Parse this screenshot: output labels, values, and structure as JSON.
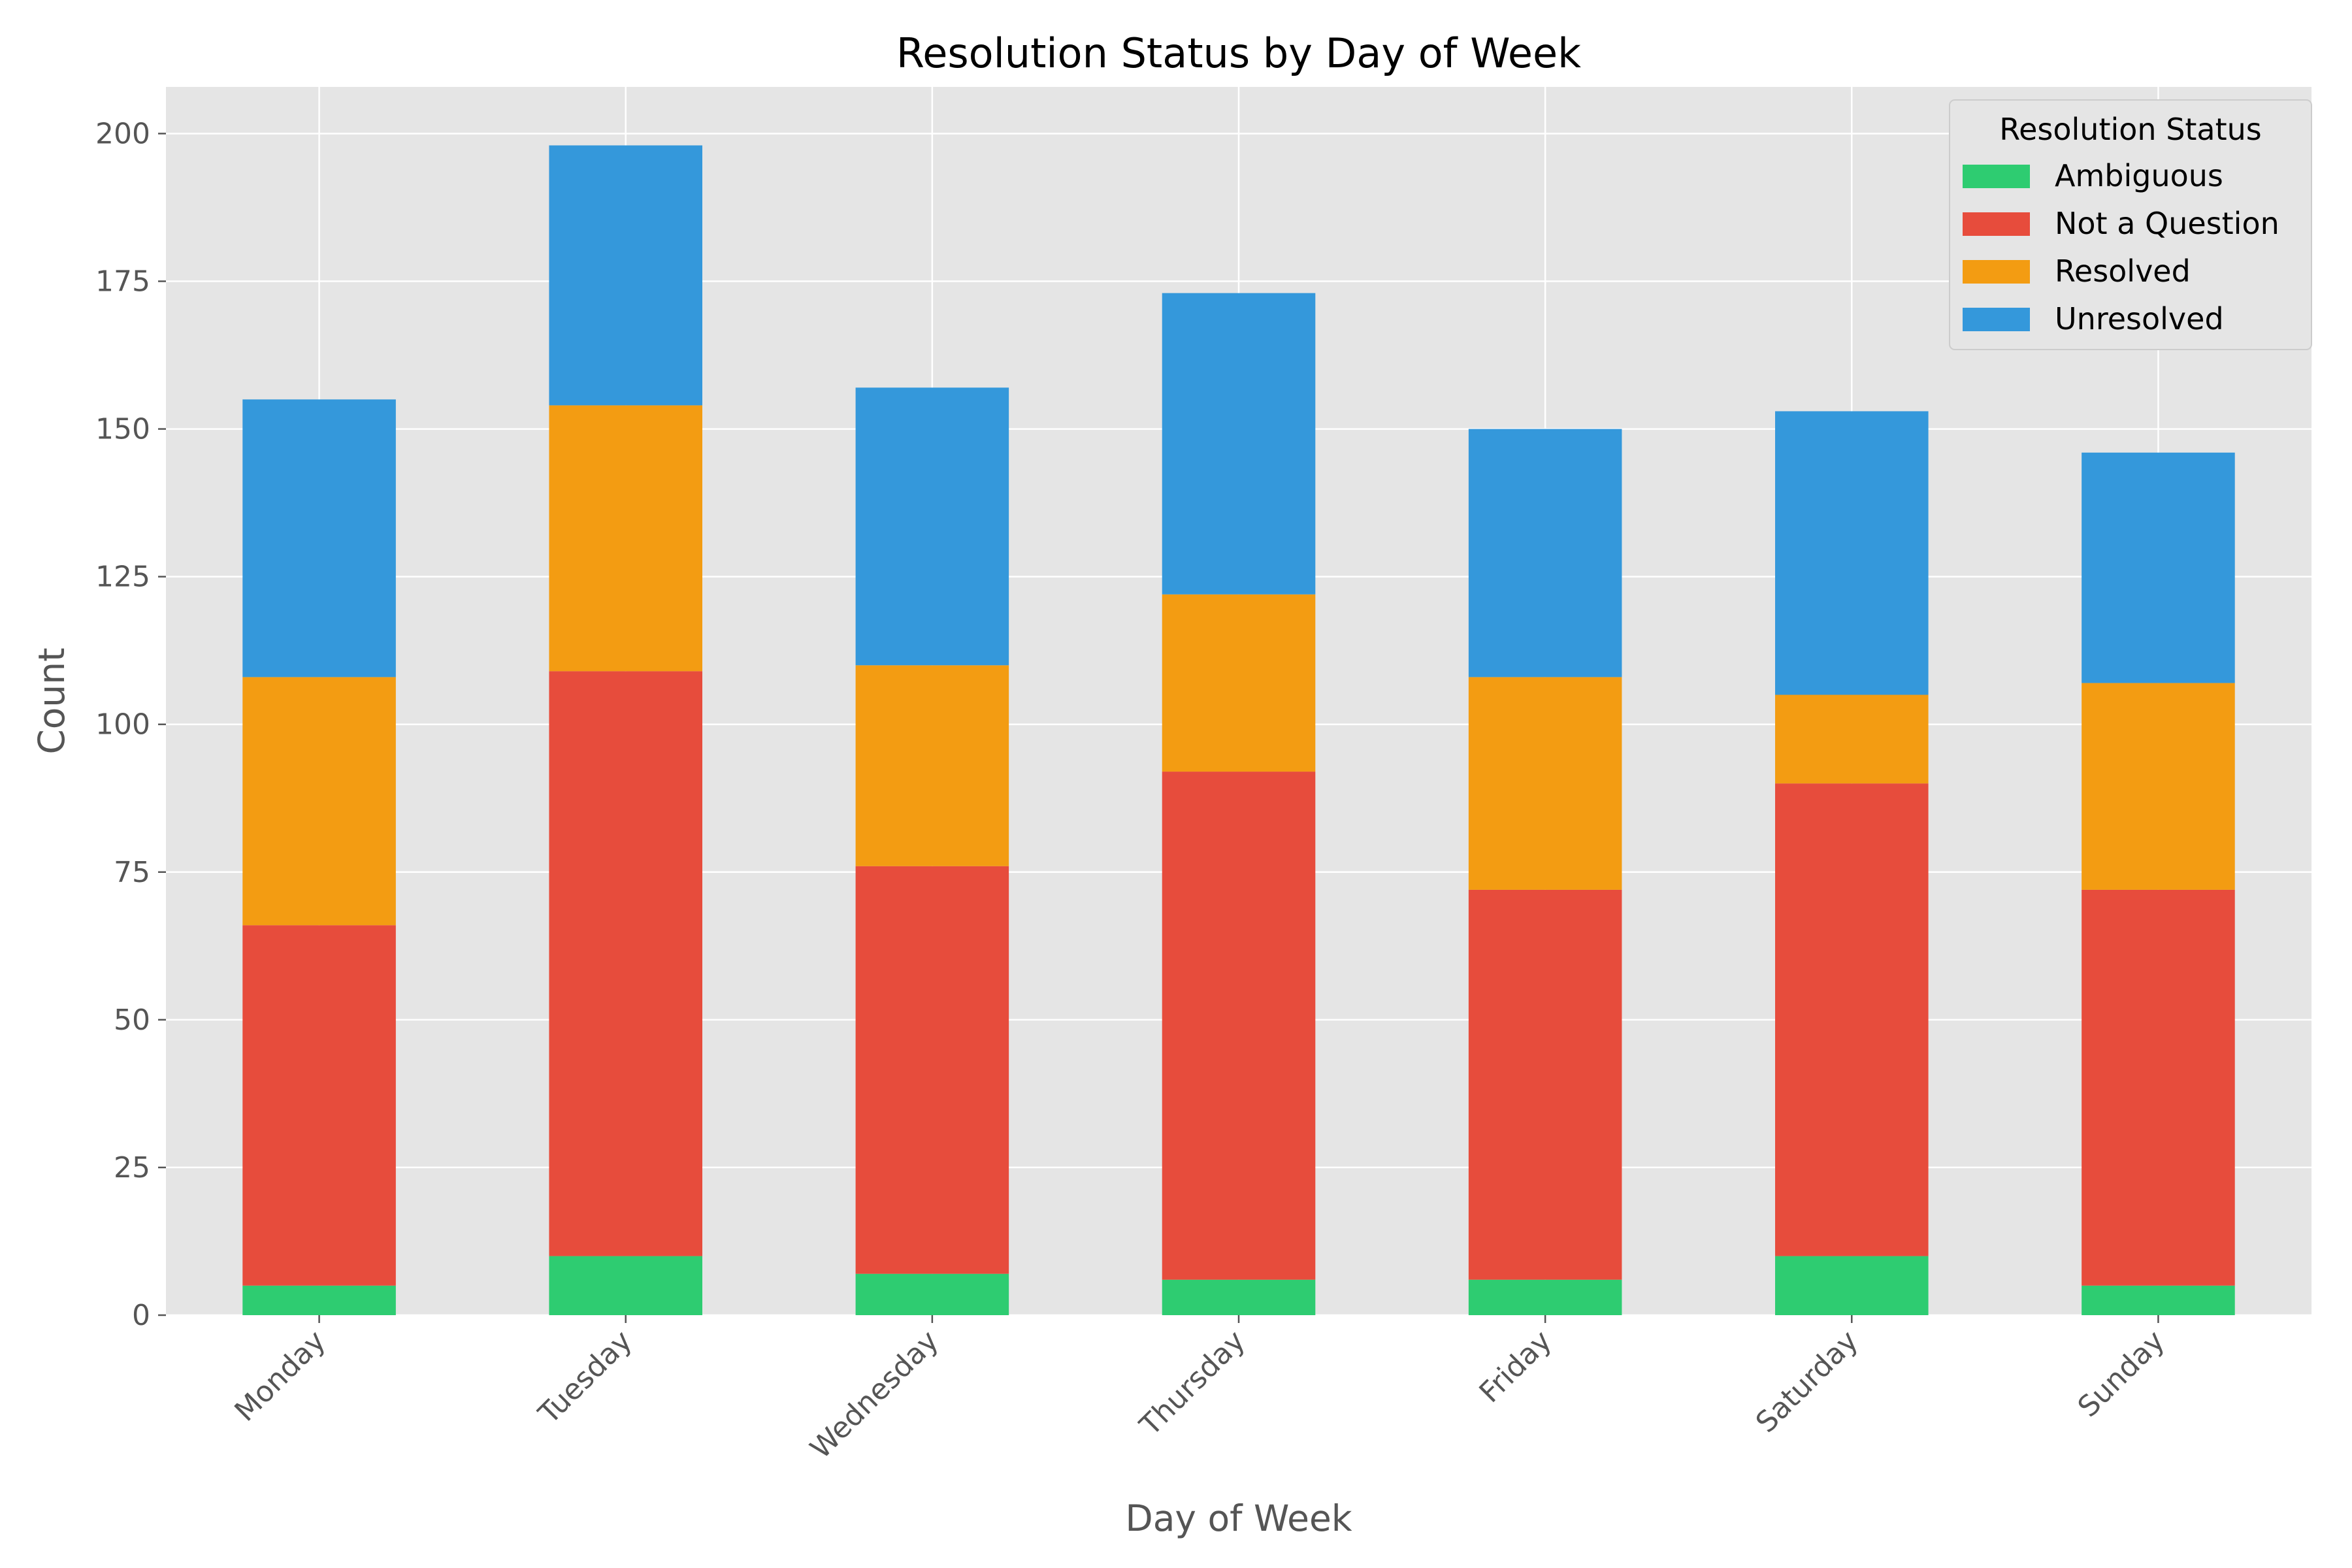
{
  "chart_data": {
    "type": "bar",
    "stacked": true,
    "title": "Resolution Status by Day of Week",
    "xlabel": "Day of Week",
    "ylabel": "Count",
    "ylim": [
      0,
      207.9
    ],
    "yticks": [
      0,
      25,
      50,
      75,
      100,
      125,
      150,
      175,
      200
    ],
    "grid": true,
    "legend_title": "Resolution Status",
    "legend_position": "top-right",
    "categories": [
      "Monday",
      "Tuesday",
      "Wednesday",
      "Thursday",
      "Friday",
      "Saturday",
      "Sunday"
    ],
    "series": [
      {
        "name": "Ambiguous",
        "color": "#2ecc71",
        "values": [
          5,
          10,
          7,
          6,
          6,
          10,
          5
        ]
      },
      {
        "name": "Not a Question",
        "color": "#e74c3c",
        "values": [
          61,
          99,
          69,
          86,
          66,
          80,
          67
        ]
      },
      {
        "name": "Resolved",
        "color": "#f39c12",
        "values": [
          42,
          45,
          34,
          30,
          36,
          15,
          35
        ]
      },
      {
        "name": "Unresolved",
        "color": "#3498db",
        "values": [
          47,
          44,
          47,
          51,
          42,
          48,
          39
        ]
      }
    ]
  },
  "colors": {
    "plot_background": "#e5e5e5",
    "grid": "#ffffff",
    "tick": "#555555"
  }
}
